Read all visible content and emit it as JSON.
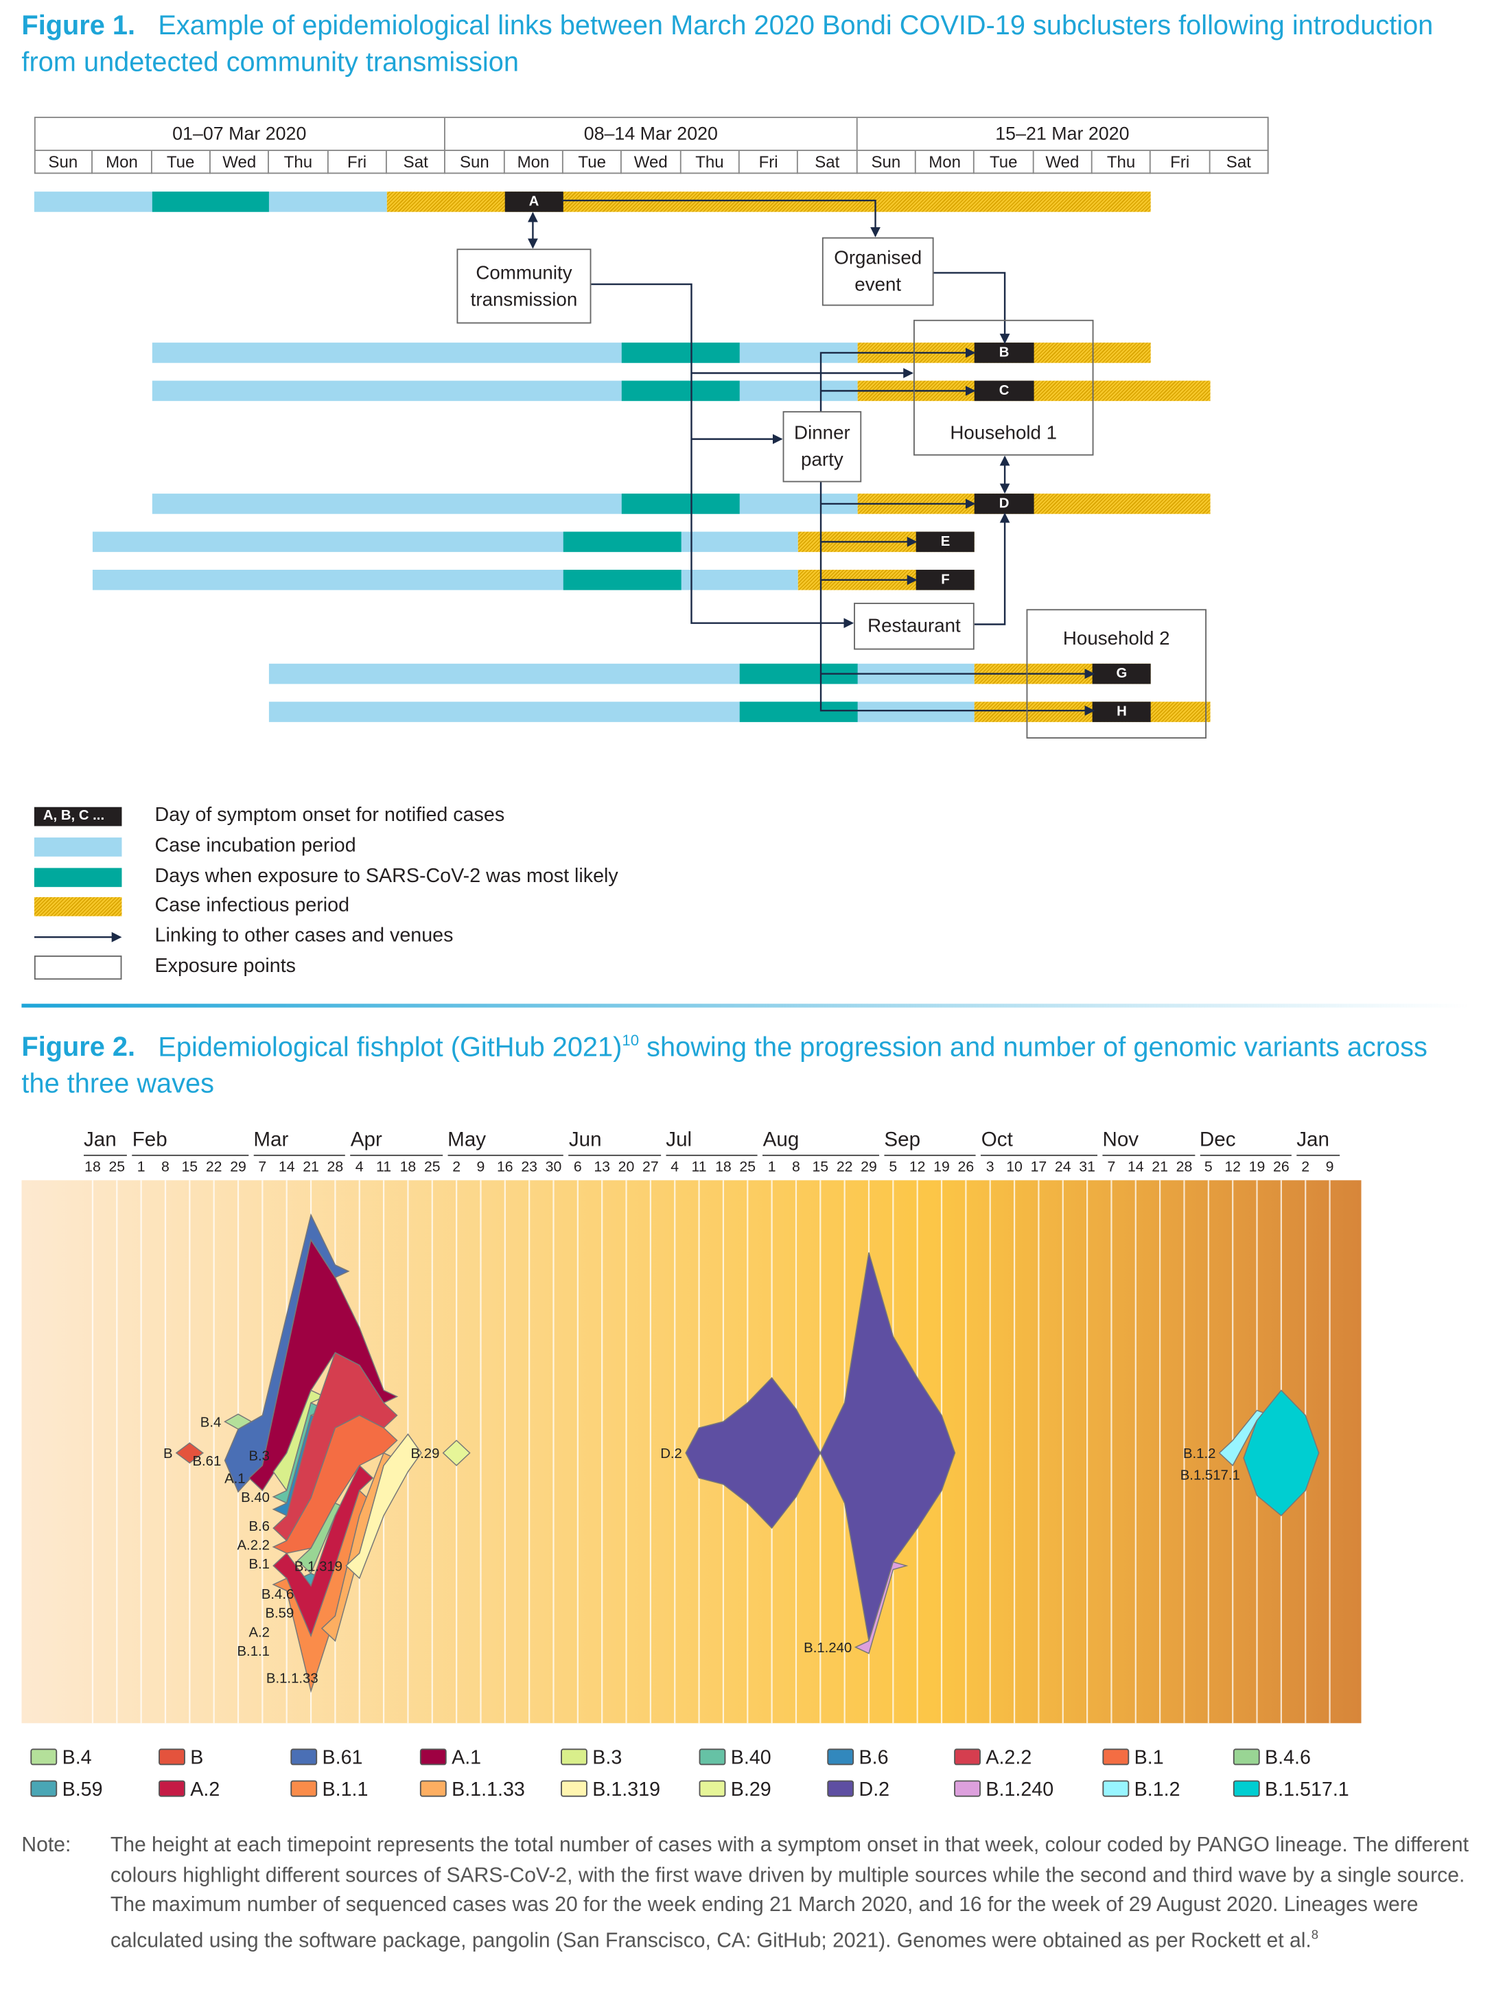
{
  "figure1": {
    "label": "Figure 1.",
    "title": "Example of epidemiological links between March 2020 Bondi COVID-19 subclusters following introduction from undetected community transmission",
    "weeks": [
      "01–07 Mar 2020",
      "08–14 Mar 2020",
      "15–21 Mar 2020"
    ],
    "days": [
      "Sun",
      "Mon",
      "Tue",
      "Wed",
      "Thu",
      "Fri",
      "Sat",
      "Sun",
      "Mon",
      "Tue",
      "Wed",
      "Thu",
      "Fri",
      "Sat",
      "Sun",
      "Mon",
      "Tue",
      "Wed",
      "Thu",
      "Fri",
      "Sat"
    ],
    "cases": [
      {
        "label": "A",
        "incubation": [
          "2020-03-01",
          "2020-03-06"
        ],
        "exposure": [
          "2020-03-03",
          "2020-03-04"
        ],
        "infectious": [
          "2020-03-07",
          "2020-03-19"
        ],
        "onset": "2020-03-09"
      },
      {
        "label": "B",
        "incubation": [
          "2020-03-03",
          "2020-03-14"
        ],
        "exposure": [
          "2020-03-11",
          "2020-03-12"
        ],
        "infectious": [
          "2020-03-15",
          "2020-03-19"
        ],
        "onset": "2020-03-17"
      },
      {
        "label": "C",
        "incubation": [
          "2020-03-03",
          "2020-03-14"
        ],
        "exposure": [
          "2020-03-11",
          "2020-03-12"
        ],
        "infectious": [
          "2020-03-15",
          "2020-03-20"
        ],
        "onset": "2020-03-17"
      },
      {
        "label": "D",
        "incubation": [
          "2020-03-03",
          "2020-03-14"
        ],
        "exposure": [
          "2020-03-11",
          "2020-03-12"
        ],
        "infectious": [
          "2020-03-15",
          "2020-03-20"
        ],
        "onset": "2020-03-17"
      },
      {
        "label": "E",
        "incubation": [
          "2020-03-02",
          "2020-03-13"
        ],
        "exposure": [
          "2020-03-10",
          "2020-03-11"
        ],
        "infectious": [
          "2020-03-14",
          "2020-03-16"
        ],
        "onset": "2020-03-16"
      },
      {
        "label": "F",
        "incubation": [
          "2020-03-02",
          "2020-03-13"
        ],
        "exposure": [
          "2020-03-10",
          "2020-03-11"
        ],
        "infectious": [
          "2020-03-14",
          "2020-03-16"
        ],
        "onset": "2020-03-16"
      },
      {
        "label": "G",
        "incubation": [
          "2020-03-05",
          "2020-03-16"
        ],
        "exposure": [
          "2020-03-13",
          "2020-03-14"
        ],
        "infectious": [
          "2020-03-17",
          "2020-03-19"
        ],
        "onset": "2020-03-19"
      },
      {
        "label": "H",
        "incubation": [
          "2020-03-05",
          "2020-03-16"
        ],
        "exposure": [
          "2020-03-13",
          "2020-03-14"
        ],
        "infectious": [
          "2020-03-17",
          "2020-03-20"
        ],
        "onset": "2020-03-19"
      }
    ],
    "venues": {
      "community": "Community transmission",
      "organised": "Organised event",
      "household1": "Household 1",
      "dinner": "Dinner party",
      "restaurant": "Restaurant",
      "household2": "Household 2"
    },
    "legend": [
      {
        "swatch": "onset",
        "swatch_text": "A, B, C ...",
        "text": "Day of symptom onset for notified cases"
      },
      {
        "swatch": "inc",
        "text": "Case incubation period"
      },
      {
        "swatch": "exp",
        "text": "Days when exposure to SARS-CoV-2 was most likely"
      },
      {
        "swatch": "inf",
        "text": "Case infectious period"
      },
      {
        "swatch": "arrow",
        "text": "Linking to other cases and venues"
      },
      {
        "swatch": "box",
        "text": "Exposure points"
      }
    ],
    "colors": {
      "incubation": "#a0d8f0",
      "exposure": "#00a99d",
      "infectious": "#f6c72a",
      "onset": "#231f20",
      "arrow": "#1b2a47"
    }
  },
  "figure2": {
    "label": "Figure 2.",
    "title": "Epidemiological fishplot (GitHub 2021)",
    "title_sup": "10",
    "title_rest": " showing the progression and number of genomic variants across the three waves",
    "note_label": "Note:",
    "note": "The height at each timepoint represents the total number of cases with a symptom onset in that week, colour coded by PANGO lineage. The different colours highlight different sources of SARS-CoV-2, with the first wave driven by multiple sources while the second and third wave by a single source. The maximum number of sequenced cases was 20 for the week ending 21 March 2020, and 16 for the week of 29 August 2020. Lineages were calculated using the software package, pangolin (San Franscisco, CA: GitHub; 2021). Genomes were obtained as per Rockett et al.",
    "note_sup": "8"
  },
  "chart_data": {
    "type": "area",
    "subtype": "fishplot",
    "months": [
      "Jan",
      "Feb",
      "Mar",
      "Apr",
      "May",
      "Jun",
      "Jul",
      "Aug",
      "Sep",
      "Oct",
      "Nov",
      "Dec",
      "Jan"
    ],
    "month_week_counts": [
      2,
      5,
      4,
      4,
      5,
      4,
      4,
      5,
      4,
      5,
      4,
      4,
      2
    ],
    "week_labels": [
      "18",
      "25",
      "1",
      "8",
      "15",
      "22",
      "29",
      "7",
      "14",
      "21",
      "28",
      "4",
      "11",
      "18",
      "25",
      "2",
      "9",
      "16",
      "23",
      "30",
      "6",
      "13",
      "20",
      "27",
      "4",
      "11",
      "18",
      "25",
      "1",
      "8",
      "15",
      "22",
      "29",
      "5",
      "12",
      "19",
      "26",
      "3",
      "10",
      "17",
      "24",
      "31",
      "7",
      "14",
      "21",
      "28",
      "5",
      "12",
      "19",
      "26",
      "2",
      "9"
    ],
    "week_dates": [
      "2020-01-18",
      "2020-01-25",
      "2020-02-01",
      "2020-02-08",
      "2020-02-15",
      "2020-02-22",
      "2020-02-29",
      "2020-03-07",
      "2020-03-14",
      "2020-03-21",
      "2020-03-28",
      "2020-04-04",
      "2020-04-11",
      "2020-04-18",
      "2020-04-25",
      "2020-05-02",
      "2020-05-09",
      "2020-05-16",
      "2020-05-23",
      "2020-05-30",
      "2020-06-06",
      "2020-06-13",
      "2020-06-20",
      "2020-06-27",
      "2020-07-04",
      "2020-07-11",
      "2020-07-18",
      "2020-07-25",
      "2020-08-01",
      "2020-08-08",
      "2020-08-15",
      "2020-08-22",
      "2020-08-29",
      "2020-09-05",
      "2020-09-12",
      "2020-09-19",
      "2020-09-26",
      "2020-10-03",
      "2020-10-10",
      "2020-10-17",
      "2020-10-24",
      "2020-10-31",
      "2020-11-07",
      "2020-11-14",
      "2020-11-21",
      "2020-11-28",
      "2020-12-05",
      "2020-12-12",
      "2020-12-19",
      "2020-12-26",
      "2021-01-02",
      "2021-01-09"
    ],
    "ylabel": "",
    "max_cases": 20,
    "series": [
      {
        "name": "B.4",
        "color": "#b4e09a",
        "cases": {
          "2020-02-29": 0.6
        }
      },
      {
        "name": "B",
        "color": "#e4533d",
        "cases": {
          "2020-02-15": 0.8
        }
      },
      {
        "name": "B.61",
        "color": "#4a6fb5",
        "cases": {
          "2020-02-29": 2.5,
          "2020-03-07": 2,
          "2020-03-14": 1.5,
          "2020-03-21": 1,
          "2020-03-28": 0.5
        }
      },
      {
        "name": "A.1",
        "color": "#9e0142",
        "cases": {
          "2020-03-07": 1,
          "2020-03-14": 4,
          "2020-03-21": 6,
          "2020-03-28": 3,
          "2020-04-04": 1.5,
          "2020-04-11": 0.5
        }
      },
      {
        "name": "B.3",
        "color": "#d9ef8b",
        "cases": {
          "2020-03-14": 1.5,
          "2020-03-21": 0.5
        }
      },
      {
        "name": "B.40",
        "color": "#66c2a5",
        "cases": {
          "2020-03-14": 0.5,
          "2020-03-21": 0.5
        }
      },
      {
        "name": "B.6",
        "color": "#3288bd",
        "cases": {
          "2020-03-14": 0.5,
          "2020-03-21": 0.3
        }
      },
      {
        "name": "A.2.2",
        "color": "#d53e4f",
        "cases": {
          "2020-03-14": 1,
          "2020-03-21": 3,
          "2020-03-28": 3,
          "2020-04-04": 2,
          "2020-04-11": 1
        }
      },
      {
        "name": "B.1",
        "color": "#f46d43",
        "cases": {
          "2020-03-14": 0.5,
          "2020-03-21": 2,
          "2020-03-28": 3,
          "2020-04-04": 2,
          "2020-04-11": 1
        }
      },
      {
        "name": "B.4.6",
        "color": "#99d594",
        "cases": {
          "2020-03-21": 1,
          "2020-03-28": 0.5
        }
      },
      {
        "name": "B.59",
        "color": "#4aa6b5",
        "cases": {
          "2020-03-21": 0.5
        }
      },
      {
        "name": "A.2",
        "color": "#c51b45",
        "cases": {
          "2020-03-14": 1,
          "2020-03-21": 2,
          "2020-03-28": 2,
          "2020-04-04": 1
        }
      },
      {
        "name": "B.1.1",
        "color": "#fa8c4a",
        "cases": {
          "2020-03-14": 0.5,
          "2020-03-21": 2.2,
          "2020-03-28": 2,
          "2020-04-04": 1
        }
      },
      {
        "name": "B.1.1.33",
        "color": "#fdae61",
        "cases": {
          "2020-03-28": 1,
          "2020-04-04": 1.5,
          "2020-04-11": 0.5
        }
      },
      {
        "name": "B.1.319",
        "color": "#fff5b0",
        "cases": {
          "2020-04-04": 1,
          "2020-04-11": 2,
          "2020-04-18": 1.5
        }
      },
      {
        "name": "B.29",
        "color": "#e6f598",
        "cases": {
          "2020-05-02": 1
        }
      },
      {
        "name": "D.2",
        "color": "#5e4fa2",
        "cases": {
          "2020-07-11": 2,
          "2020-07-18": 2.5,
          "2020-07-25": 4,
          "2020-08-01": 6,
          "2020-08-08": 3.5,
          "2020-08-22": 4,
          "2020-08-29": 15.5,
          "2020-09-05": 9,
          "2020-09-12": 6,
          "2020-09-19": 3
        }
      },
      {
        "name": "B.1.240",
        "color": "#dda0dd",
        "cases": {
          "2020-08-29": 0.5,
          "2020-09-05": 0.3
        }
      },
      {
        "name": "B.1.2",
        "color": "#98f5ff",
        "cases": {
          "2020-12-12": 1,
          "2020-12-19": 0.4
        }
      },
      {
        "name": "B.1.517.1",
        "color": "#00ced1",
        "cases": {
          "2020-12-19": 3,
          "2020-12-26": 5,
          "2021-01-02": 3
        }
      }
    ],
    "legend_placement": "bottom",
    "legend_order": [
      "B.4",
      "B",
      "B.61",
      "A.1",
      "B.3",
      "B.40",
      "B.6",
      "A.2.2",
      "B.1",
      "B.4.6",
      "B.59",
      "A.2",
      "B.1.1",
      "B.1.1.33",
      "B.1.319",
      "B.29",
      "D.2",
      "B.1.240",
      "B.1.2",
      "B.1.517.1"
    ],
    "background": {
      "start": "#fde9d0",
      "middle": "#fcc647",
      "end": "#d7863a"
    },
    "grid": true
  }
}
